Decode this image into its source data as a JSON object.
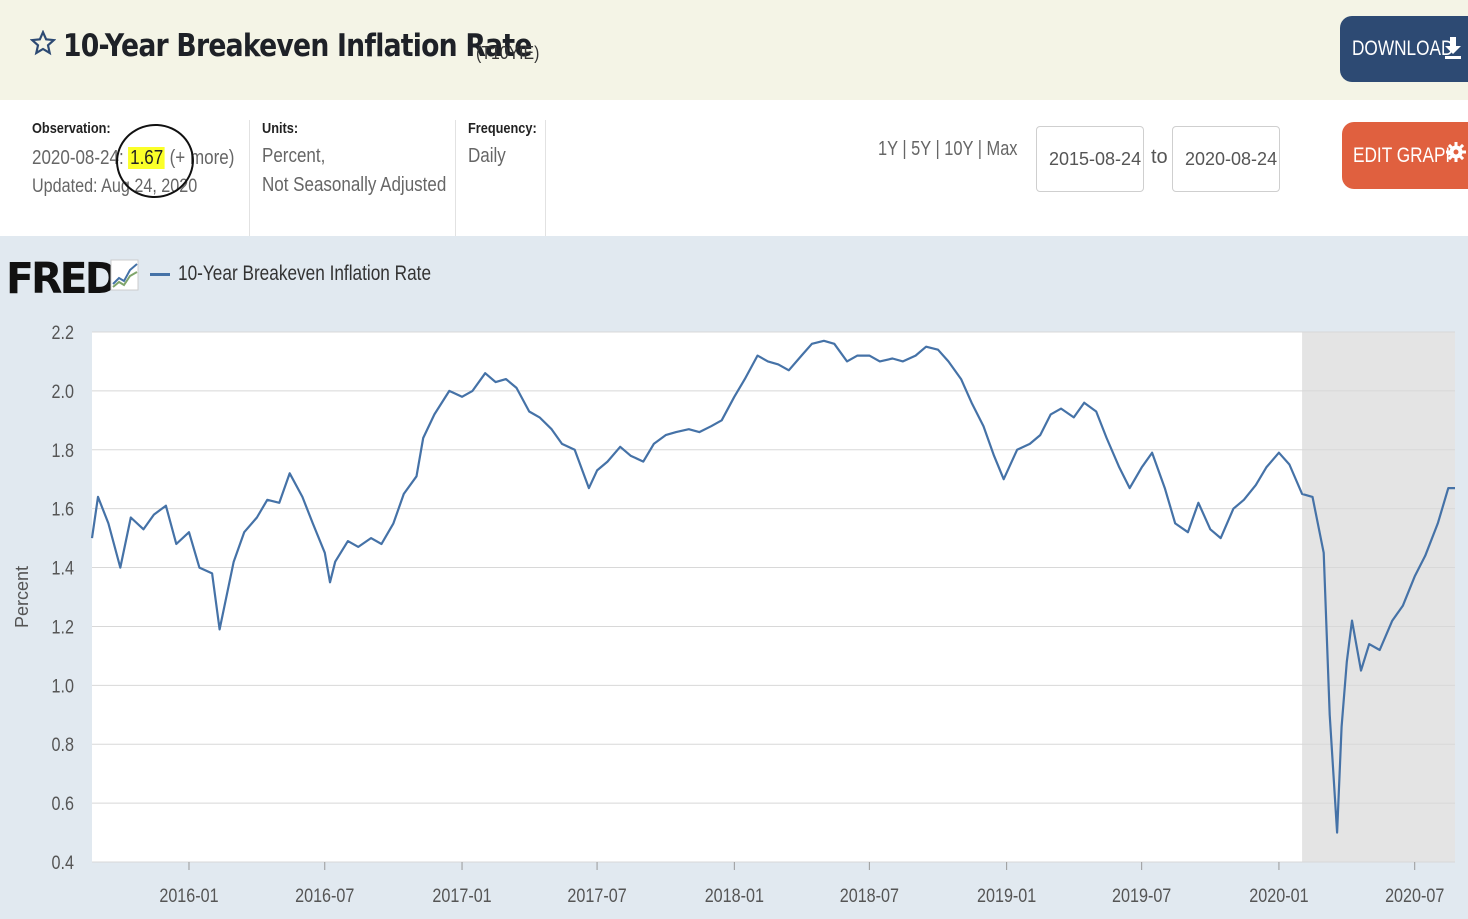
{
  "header": {
    "title": "10-Year Breakeven Inflation Rate",
    "series_id": "(T10YIE)",
    "download_label": "DOWNLOAD"
  },
  "meta": {
    "observation_label": "Observation:",
    "observation_date": "2020-08-24:",
    "observation_value": "1.67",
    "observation_more": "(+ more)",
    "updated": "Updated: Aug 24, 2020",
    "units_label": "Units:",
    "units_line1": "Percent,",
    "units_line2": "Not Seasonally Adjusted",
    "frequency_label": "Frequency:",
    "frequency_value": "Daily"
  },
  "controls": {
    "ranges": "1Y | 5Y | 10Y | Max",
    "start_date": "2015-08-24",
    "to_label": "to",
    "end_date": "2020-08-24",
    "edit_label": "EDIT GRAPH"
  },
  "legend": {
    "logo": "FRED",
    "series_name": "10-Year Breakeven Inflation Rate"
  },
  "colors": {
    "line": "#4572a7",
    "recession": "#e4e4e4",
    "download_button": "#2d4a73",
    "edit_button": "#e0603f",
    "highlight": "#fbff29"
  },
  "chart_data": {
    "type": "line",
    "ylabel": "Percent",
    "ylim": [
      0.4,
      2.2
    ],
    "yticks": [
      "0.4",
      "0.6",
      "0.8",
      "1.0",
      "1.2",
      "1.4",
      "1.6",
      "1.8",
      "2.0",
      "2.2"
    ],
    "xlim": [
      "2015-08-24",
      "2020-08-24"
    ],
    "xticks": [
      "2016-01",
      "2016-07",
      "2017-01",
      "2017-07",
      "2018-01",
      "2018-07",
      "2019-01",
      "2019-07",
      "2020-01",
      "2020-07"
    ],
    "recession": [
      "2020-02-01",
      "2020-08-24"
    ],
    "grid": "horizontal",
    "series": [
      {
        "name": "10-Year Breakeven Inflation Rate",
        "points": [
          [
            "2015-08-24",
            1.5
          ],
          [
            "2015-09-01",
            1.64
          ],
          [
            "2015-09-15",
            1.55
          ],
          [
            "2015-10-01",
            1.4
          ],
          [
            "2015-10-15",
            1.57
          ],
          [
            "2015-11-01",
            1.53
          ],
          [
            "2015-11-15",
            1.58
          ],
          [
            "2015-12-01",
            1.61
          ],
          [
            "2015-12-15",
            1.48
          ],
          [
            "2016-01-01",
            1.52
          ],
          [
            "2016-01-15",
            1.4
          ],
          [
            "2016-02-01",
            1.38
          ],
          [
            "2016-02-11",
            1.19
          ],
          [
            "2016-03-01",
            1.42
          ],
          [
            "2016-03-15",
            1.52
          ],
          [
            "2016-04-01",
            1.57
          ],
          [
            "2016-04-15",
            1.63
          ],
          [
            "2016-05-01",
            1.62
          ],
          [
            "2016-05-15",
            1.72
          ],
          [
            "2016-06-01",
            1.64
          ],
          [
            "2016-06-15",
            1.55
          ],
          [
            "2016-07-01",
            1.45
          ],
          [
            "2016-07-08",
            1.35
          ],
          [
            "2016-07-15",
            1.42
          ],
          [
            "2016-08-01",
            1.49
          ],
          [
            "2016-08-15",
            1.47
          ],
          [
            "2016-09-01",
            1.5
          ],
          [
            "2016-09-15",
            1.48
          ],
          [
            "2016-10-01",
            1.55
          ],
          [
            "2016-10-15",
            1.65
          ],
          [
            "2016-11-01",
            1.71
          ],
          [
            "2016-11-10",
            1.84
          ],
          [
            "2016-11-25",
            1.92
          ],
          [
            "2016-12-15",
            2.0
          ],
          [
            "2017-01-01",
            1.98
          ],
          [
            "2017-01-15",
            2.0
          ],
          [
            "2017-02-01",
            2.06
          ],
          [
            "2017-02-15",
            2.03
          ],
          [
            "2017-03-01",
            2.04
          ],
          [
            "2017-03-15",
            2.01
          ],
          [
            "2017-04-01",
            1.93
          ],
          [
            "2017-04-15",
            1.91
          ],
          [
            "2017-05-01",
            1.87
          ],
          [
            "2017-05-15",
            1.82
          ],
          [
            "2017-06-01",
            1.8
          ],
          [
            "2017-06-20",
            1.67
          ],
          [
            "2017-07-01",
            1.73
          ],
          [
            "2017-07-15",
            1.76
          ],
          [
            "2017-08-01",
            1.81
          ],
          [
            "2017-08-15",
            1.78
          ],
          [
            "2017-09-01",
            1.76
          ],
          [
            "2017-09-15",
            1.82
          ],
          [
            "2017-10-01",
            1.85
          ],
          [
            "2017-10-15",
            1.86
          ],
          [
            "2017-11-01",
            1.87
          ],
          [
            "2017-11-15",
            1.86
          ],
          [
            "2017-12-01",
            1.88
          ],
          [
            "2017-12-15",
            1.9
          ],
          [
            "2018-01-01",
            1.98
          ],
          [
            "2018-01-15",
            2.04
          ],
          [
            "2018-02-01",
            2.12
          ],
          [
            "2018-02-15",
            2.1
          ],
          [
            "2018-03-01",
            2.09
          ],
          [
            "2018-03-15",
            2.07
          ],
          [
            "2018-04-01",
            2.12
          ],
          [
            "2018-04-15",
            2.16
          ],
          [
            "2018-05-01",
            2.17
          ],
          [
            "2018-05-15",
            2.16
          ],
          [
            "2018-06-01",
            2.1
          ],
          [
            "2018-06-15",
            2.12
          ],
          [
            "2018-07-01",
            2.12
          ],
          [
            "2018-07-15",
            2.1
          ],
          [
            "2018-08-01",
            2.11
          ],
          [
            "2018-08-15",
            2.1
          ],
          [
            "2018-09-01",
            2.12
          ],
          [
            "2018-09-15",
            2.15
          ],
          [
            "2018-10-01",
            2.14
          ],
          [
            "2018-10-15",
            2.1
          ],
          [
            "2018-11-01",
            2.04
          ],
          [
            "2018-11-15",
            1.96
          ],
          [
            "2018-12-01",
            1.88
          ],
          [
            "2018-12-15",
            1.78
          ],
          [
            "2018-12-28",
            1.7
          ],
          [
            "2019-01-15",
            1.8
          ],
          [
            "2019-02-01",
            1.82
          ],
          [
            "2019-02-15",
            1.85
          ],
          [
            "2019-03-01",
            1.92
          ],
          [
            "2019-03-15",
            1.94
          ],
          [
            "2019-04-01",
            1.91
          ],
          [
            "2019-04-15",
            1.96
          ],
          [
            "2019-05-01",
            1.93
          ],
          [
            "2019-05-15",
            1.84
          ],
          [
            "2019-06-01",
            1.74
          ],
          [
            "2019-06-15",
            1.67
          ],
          [
            "2019-07-01",
            1.74
          ],
          [
            "2019-07-15",
            1.79
          ],
          [
            "2019-08-01",
            1.67
          ],
          [
            "2019-08-15",
            1.55
          ],
          [
            "2019-09-01",
            1.52
          ],
          [
            "2019-09-15",
            1.62
          ],
          [
            "2019-10-01",
            1.53
          ],
          [
            "2019-10-15",
            1.5
          ],
          [
            "2019-11-01",
            1.6
          ],
          [
            "2019-11-15",
            1.63
          ],
          [
            "2019-12-01",
            1.68
          ],
          [
            "2019-12-15",
            1.74
          ],
          [
            "2020-01-01",
            1.79
          ],
          [
            "2020-01-15",
            1.75
          ],
          [
            "2020-02-01",
            1.65
          ],
          [
            "2020-02-15",
            1.64
          ],
          [
            "2020-03-01",
            1.45
          ],
          [
            "2020-03-09",
            0.9
          ],
          [
            "2020-03-19",
            0.5
          ],
          [
            "2020-03-25",
            0.86
          ],
          [
            "2020-04-01",
            1.08
          ],
          [
            "2020-04-08",
            1.22
          ],
          [
            "2020-04-20",
            1.05
          ],
          [
            "2020-05-01",
            1.14
          ],
          [
            "2020-05-15",
            1.12
          ],
          [
            "2020-06-01",
            1.22
          ],
          [
            "2020-06-15",
            1.27
          ],
          [
            "2020-07-01",
            1.37
          ],
          [
            "2020-07-15",
            1.44
          ],
          [
            "2020-08-01",
            1.55
          ],
          [
            "2020-08-15",
            1.67
          ],
          [
            "2020-08-24",
            1.67
          ]
        ]
      }
    ]
  }
}
